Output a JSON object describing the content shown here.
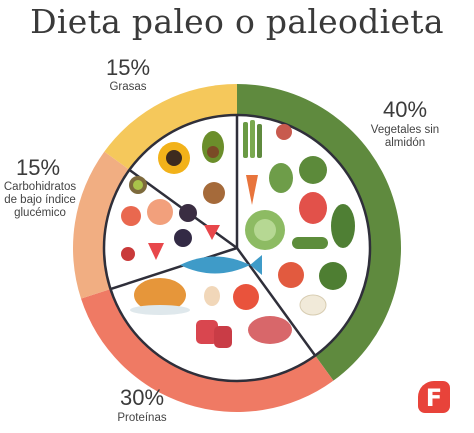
{
  "chart_data": {
    "type": "pie",
    "title": "Dieta paleo o paleodieta",
    "slices": [
      {
        "label": "Vegetales sin almidón",
        "value": 40,
        "value_label": "40%",
        "ring_color": "#5f8a3e",
        "inner_color": "#ffffff"
      },
      {
        "label": "Proteínas",
        "value": 30,
        "value_label": "30%",
        "ring_color": "#ef7a64",
        "inner_color": "#ffffff"
      },
      {
        "label": "Carbohidratos de bajo índice glucémico",
        "value": 15,
        "value_label": "15%",
        "ring_color": "#f1ae82",
        "inner_color": "#ffffff"
      },
      {
        "label": "Grasas",
        "value": 15,
        "value_label": "15%",
        "ring_color": "#f5c85b",
        "inner_color": "#ffffff"
      }
    ],
    "start": "top",
    "direction": "clockwise",
    "legend": "none"
  },
  "colors": {
    "divider": "#2f2f3a",
    "title": "#3a3a3a",
    "brand": "#e8433a"
  },
  "brand": {
    "letter": "F",
    "icon": "brand-f-logo-icon"
  }
}
